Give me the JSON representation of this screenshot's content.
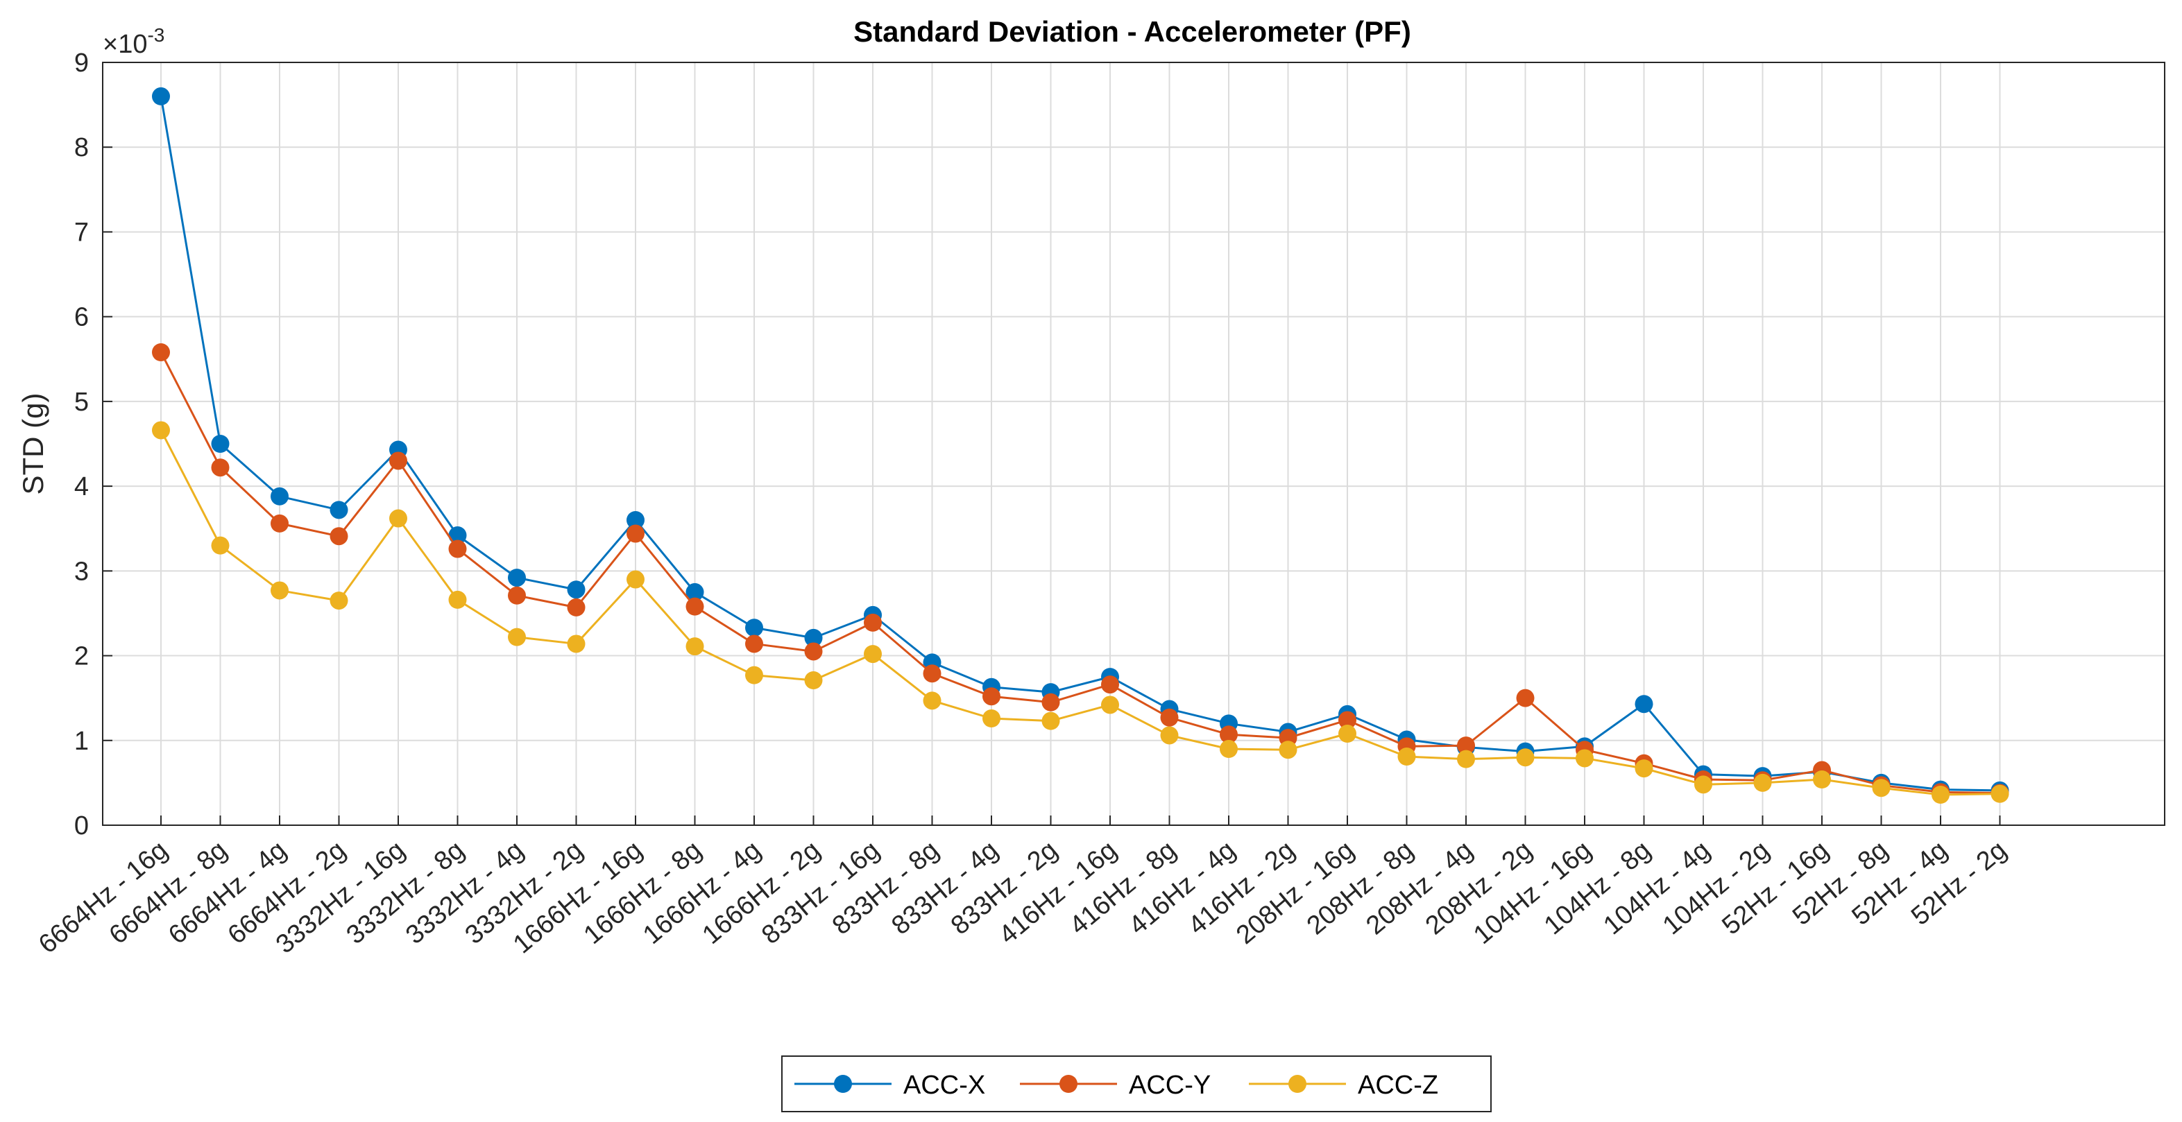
{
  "chart_data": {
    "type": "line",
    "title": "Standard Deviation - Accelerometer (PF)",
    "xlabel": "",
    "ylabel": "STD (g)",
    "y_multiplier_label": {
      "base": "×10",
      "exponent": "-3"
    },
    "ylim": [
      0,
      9
    ],
    "yticks": [
      "0",
      "1",
      "2",
      "3",
      "4",
      "5",
      "6",
      "7",
      "8",
      "9"
    ],
    "grid": true,
    "legend_position": "bottom-center",
    "categories": [
      "6664Hz - 16g",
      "6664Hz - 8g",
      "6664Hz - 4g",
      "6664Hz - 2g",
      "3332Hz - 16g",
      "3332Hz - 8g",
      "3332Hz - 4g",
      "3332Hz - 2g",
      "1666Hz - 16g",
      "1666Hz - 8g",
      "1666Hz - 4g",
      "1666Hz - 2g",
      "833Hz - 16g",
      "833Hz - 8g",
      "833Hz - 4g",
      "833Hz - 2g",
      "416Hz - 16g",
      "416Hz - 8g",
      "416Hz - 4g",
      "416Hz - 2g",
      "208Hz - 16g",
      "208Hz - 8g",
      "208Hz - 4g",
      "208Hz - 2g",
      "104Hz - 16g",
      "104Hz - 8g",
      "104Hz - 4g",
      "104Hz - 2g",
      "52Hz - 16g",
      "52Hz - 8g",
      "52Hz - 4g",
      "52Hz - 2g"
    ],
    "series": [
      {
        "name": "ACC-X",
        "color": "#0072BD",
        "values": [
          8.6,
          4.5,
          3.88,
          3.72,
          4.43,
          3.42,
          2.92,
          2.78,
          3.6,
          2.75,
          2.33,
          2.21,
          2.48,
          1.92,
          1.63,
          1.57,
          1.75,
          1.37,
          1.2,
          1.1,
          1.31,
          1.01,
          0.92,
          0.87,
          0.93,
          1.43,
          0.6,
          0.58,
          0.63,
          0.5,
          0.42,
          0.41
        ]
      },
      {
        "name": "ACC-Y",
        "color": "#D95319",
        "values": [
          5.58,
          4.22,
          3.56,
          3.41,
          4.3,
          3.26,
          2.71,
          2.57,
          3.44,
          2.58,
          2.14,
          2.05,
          2.39,
          1.79,
          1.52,
          1.45,
          1.66,
          1.27,
          1.07,
          1.03,
          1.24,
          0.93,
          0.94,
          1.5,
          0.89,
          0.73,
          0.54,
          0.53,
          0.65,
          0.47,
          0.39,
          0.38
        ]
      },
      {
        "name": "ACC-Z",
        "color": "#EDB120",
        "values": [
          4.66,
          3.3,
          2.77,
          2.65,
          3.62,
          2.66,
          2.22,
          2.14,
          2.9,
          2.11,
          1.77,
          1.71,
          2.02,
          1.47,
          1.26,
          1.23,
          1.42,
          1.06,
          0.9,
          0.89,
          1.08,
          0.81,
          0.78,
          0.8,
          0.79,
          0.67,
          0.48,
          0.5,
          0.54,
          0.44,
          0.36,
          0.37
        ]
      }
    ]
  }
}
